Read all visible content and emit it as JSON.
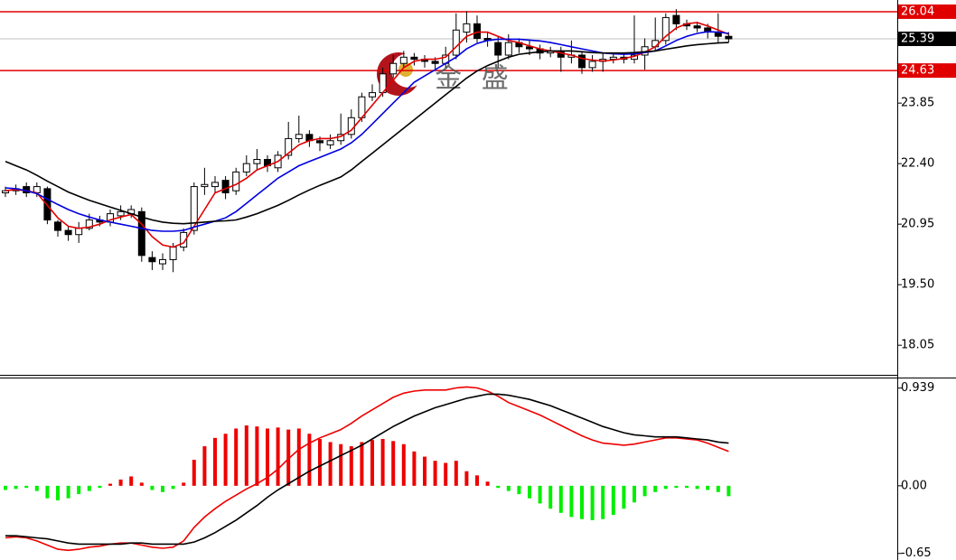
{
  "chart_data": [
    {
      "type": "candlestick",
      "watermark": "金 盛",
      "open": [
        21.7,
        21.75,
        21.85,
        21.7,
        21.8,
        21.0,
        20.8,
        20.7,
        20.85,
        21.05,
        21.0,
        21.15,
        21.2,
        21.25,
        20.15,
        20.0,
        20.1,
        20.4,
        20.8,
        21.85,
        21.85,
        22.0,
        21.75,
        22.2,
        22.4,
        22.5,
        22.3,
        22.6,
        23.0,
        23.1,
        22.95,
        22.85,
        22.95,
        23.1,
        23.5,
        24.0,
        24.1,
        24.55,
        24.8,
        24.95,
        24.9,
        24.85,
        24.8,
        25.0,
        25.55,
        25.75,
        25.4,
        25.3,
        25.0,
        25.3,
        25.2,
        25.15,
        25.05,
        25.1,
        24.95,
        25.0,
        24.7,
        24.85,
        24.9,
        24.95,
        24.9,
        25.0,
        25.2,
        25.35,
        25.95,
        25.75,
        25.7,
        25.65,
        25.55,
        25.45
      ],
      "high": [
        21.85,
        21.9,
        21.95,
        21.95,
        21.85,
        21.05,
        20.9,
        21.0,
        21.2,
        21.15,
        21.3,
        21.4,
        21.4,
        21.35,
        20.3,
        20.25,
        20.5,
        20.85,
        21.95,
        22.3,
        22.1,
        22.1,
        22.3,
        22.6,
        22.75,
        22.6,
        22.7,
        23.4,
        23.55,
        23.2,
        23.05,
        23.1,
        23.6,
        23.7,
        24.1,
        24.3,
        24.7,
        25.0,
        25.1,
        25.05,
        25.0,
        24.95,
        25.2,
        26.0,
        26.05,
        25.95,
        25.55,
        25.45,
        25.5,
        25.4,
        25.35,
        25.25,
        25.2,
        25.2,
        25.35,
        25.1,
        25.0,
        25.05,
        25.05,
        25.05,
        25.95,
        25.4,
        25.9,
        26.0,
        26.1,
        25.85,
        25.8,
        25.75,
        26.0,
        25.55
      ],
      "low": [
        21.6,
        21.65,
        21.6,
        21.6,
        20.95,
        20.65,
        20.55,
        20.5,
        20.8,
        20.9,
        20.9,
        21.05,
        21.1,
        20.05,
        19.85,
        19.85,
        19.8,
        20.3,
        20.7,
        21.65,
        21.7,
        21.55,
        21.65,
        22.1,
        22.25,
        22.2,
        22.2,
        22.5,
        22.9,
        22.8,
        22.7,
        22.75,
        22.85,
        23.0,
        23.4,
        23.9,
        24.0,
        24.45,
        24.7,
        24.75,
        24.7,
        24.65,
        24.7,
        24.9,
        25.3,
        25.3,
        25.2,
        24.7,
        24.9,
        25.05,
        25.0,
        24.9,
        24.95,
        24.6,
        24.8,
        24.55,
        24.6,
        24.6,
        24.8,
        24.8,
        24.8,
        24.65,
        25.1,
        25.25,
        25.6,
        25.6,
        25.55,
        25.4,
        25.3,
        25.3
      ],
      "close": [
        21.75,
        21.8,
        21.7,
        21.85,
        21.05,
        20.8,
        20.7,
        20.85,
        21.05,
        21.0,
        21.2,
        21.25,
        21.3,
        20.2,
        20.05,
        20.1,
        20.4,
        20.75,
        21.85,
        21.9,
        21.95,
        21.7,
        22.2,
        22.4,
        22.5,
        22.35,
        22.6,
        23.0,
        23.1,
        22.95,
        22.9,
        22.95,
        23.1,
        23.5,
        24.0,
        24.1,
        24.55,
        24.8,
        24.95,
        24.9,
        24.85,
        24.8,
        25.0,
        25.6,
        25.75,
        25.4,
        25.35,
        25.0,
        25.3,
        25.2,
        25.15,
        25.05,
        25.1,
        24.95,
        25.0,
        24.7,
        24.85,
        24.9,
        24.95,
        24.9,
        25.0,
        25.2,
        25.35,
        25.9,
        25.75,
        25.7,
        25.65,
        25.55,
        25.45,
        25.39
      ],
      "up_color": "#ffffff",
      "down_color": "#000000",
      "series": [
        {
          "color": "#e00000",
          "values": [
            21.75,
            21.78,
            21.75,
            21.7,
            21.4,
            21.1,
            20.9,
            20.85,
            20.88,
            20.95,
            21.05,
            21.12,
            21.18,
            20.95,
            20.65,
            20.45,
            20.4,
            20.5,
            20.9,
            21.3,
            21.7,
            21.8,
            21.9,
            22.05,
            22.25,
            22.35,
            22.45,
            22.65,
            22.85,
            22.95,
            23.0,
            23.0,
            23.05,
            23.2,
            23.5,
            23.8,
            24.1,
            24.4,
            24.7,
            24.85,
            24.9,
            24.9,
            24.95,
            25.2,
            25.45,
            25.55,
            25.55,
            25.45,
            25.35,
            25.3,
            25.22,
            25.15,
            25.1,
            25.05,
            25.0,
            24.92,
            24.88,
            24.86,
            24.88,
            24.92,
            24.97,
            25.07,
            25.2,
            25.45,
            25.65,
            25.75,
            25.78,
            25.7,
            25.6,
            25.5
          ]
        },
        {
          "color": "#0000e0",
          "values": [
            21.82,
            21.8,
            21.75,
            21.68,
            21.55,
            21.42,
            21.3,
            21.2,
            21.12,
            21.05,
            21.0,
            20.95,
            20.9,
            20.85,
            20.8,
            20.78,
            20.78,
            20.8,
            20.88,
            20.95,
            21.02,
            21.1,
            21.25,
            21.45,
            21.65,
            21.85,
            22.05,
            22.2,
            22.35,
            22.45,
            22.55,
            22.65,
            22.75,
            22.9,
            23.1,
            23.35,
            23.6,
            23.85,
            24.1,
            24.35,
            24.5,
            24.65,
            24.8,
            24.95,
            25.15,
            25.28,
            25.35,
            25.38,
            25.38,
            25.38,
            25.36,
            25.34,
            25.3,
            25.25,
            25.2,
            25.15,
            25.1,
            25.05,
            25.03,
            25.02,
            25.03,
            25.06,
            25.1,
            25.22,
            25.35,
            25.45,
            25.52,
            25.56,
            25.55,
            25.52
          ]
        },
        {
          "color": "#000000",
          "values": [
            22.45,
            22.35,
            22.25,
            22.12,
            21.98,
            21.85,
            21.72,
            21.62,
            21.52,
            21.44,
            21.36,
            21.28,
            21.2,
            21.12,
            21.05,
            21.0,
            20.97,
            20.96,
            20.98,
            21.0,
            21.02,
            21.03,
            21.05,
            21.12,
            21.2,
            21.3,
            21.4,
            21.52,
            21.65,
            21.77,
            21.88,
            21.98,
            22.08,
            22.25,
            22.45,
            22.65,
            22.85,
            23.05,
            23.25,
            23.45,
            23.65,
            23.85,
            24.05,
            24.25,
            24.45,
            24.62,
            24.75,
            24.85,
            24.95,
            25.02,
            25.05,
            25.08,
            25.1,
            25.1,
            25.1,
            25.08,
            25.06,
            25.05,
            25.05,
            25.05,
            25.06,
            25.08,
            25.1,
            25.14,
            25.18,
            25.22,
            25.25,
            25.27,
            25.29,
            25.3
          ]
        }
      ],
      "levels": [
        {
          "value": 26.04,
          "color": "#e00000",
          "label_bg": "#e00000"
        },
        {
          "value": 25.39,
          "color": "#c0c0c0",
          "label_bg": "#000000"
        },
        {
          "value": 24.63,
          "color": "#e00000",
          "label_bg": "#e00000"
        }
      ],
      "ylim": [
        17.34,
        26.32
      ],
      "yticks": [
        18.05,
        {
          "value": 19.5,
          "label": "19.50"
        },
        20.95,
        {
          "value": 22.4,
          "label": "22.40"
        },
        23.85
      ]
    },
    {
      "type": "macd",
      "histogram": [
        -0.04,
        -0.03,
        -0.02,
        -0.05,
        -0.12,
        -0.14,
        -0.12,
        -0.08,
        -0.05,
        -0.02,
        0.02,
        0.06,
        0.09,
        0.03,
        -0.04,
        -0.06,
        -0.03,
        0.03,
        0.25,
        0.38,
        0.46,
        0.5,
        0.55,
        0.58,
        0.57,
        0.55,
        0.56,
        0.54,
        0.55,
        0.5,
        0.45,
        0.42,
        0.4,
        0.38,
        0.42,
        0.44,
        0.45,
        0.43,
        0.4,
        0.33,
        0.28,
        0.24,
        0.22,
        0.24,
        0.14,
        0.1,
        0.04,
        -0.02,
        -0.05,
        -0.08,
        -0.12,
        -0.17,
        -0.22,
        -0.26,
        -0.3,
        -0.32,
        -0.33,
        -0.32,
        -0.28,
        -0.22,
        -0.16,
        -0.1,
        -0.06,
        -0.03,
        -0.02,
        -0.02,
        -0.03,
        -0.04,
        -0.06,
        -0.1
      ],
      "up_color": "#ee0000",
      "down_color": "#00ee00",
      "series": [
        {
          "color": "#ee0000",
          "values": [
            -0.5,
            -0.49,
            -0.5,
            -0.53,
            -0.57,
            -0.61,
            -0.62,
            -0.61,
            -0.59,
            -0.58,
            -0.56,
            -0.55,
            -0.55,
            -0.57,
            -0.59,
            -0.6,
            -0.59,
            -0.53,
            -0.4,
            -0.3,
            -0.22,
            -0.15,
            -0.09,
            -0.03,
            0.02,
            0.08,
            0.16,
            0.26,
            0.35,
            0.41,
            0.46,
            0.5,
            0.54,
            0.6,
            0.67,
            0.73,
            0.79,
            0.85,
            0.89,
            0.91,
            0.92,
            0.92,
            0.92,
            0.94,
            0.95,
            0.94,
            0.91,
            0.86,
            0.8,
            0.76,
            0.72,
            0.68,
            0.63,
            0.58,
            0.53,
            0.48,
            0.44,
            0.41,
            0.4,
            0.39,
            0.4,
            0.42,
            0.44,
            0.46,
            0.46,
            0.45,
            0.44,
            0.41,
            0.37,
            0.33
          ]
        },
        {
          "color": "#000000",
          "values": [
            -0.48,
            -0.48,
            -0.49,
            -0.5,
            -0.51,
            -0.53,
            -0.55,
            -0.56,
            -0.56,
            -0.56,
            -0.56,
            -0.56,
            -0.55,
            -0.55,
            -0.56,
            -0.56,
            -0.56,
            -0.56,
            -0.54,
            -0.5,
            -0.45,
            -0.39,
            -0.33,
            -0.26,
            -0.19,
            -0.11,
            -0.04,
            0.02,
            0.08,
            0.14,
            0.19,
            0.24,
            0.29,
            0.34,
            0.39,
            0.45,
            0.51,
            0.57,
            0.62,
            0.67,
            0.71,
            0.75,
            0.78,
            0.81,
            0.84,
            0.86,
            0.88,
            0.88,
            0.87,
            0.85,
            0.83,
            0.8,
            0.77,
            0.73,
            0.69,
            0.65,
            0.61,
            0.57,
            0.54,
            0.51,
            0.49,
            0.48,
            0.47,
            0.47,
            0.47,
            0.46,
            0.45,
            0.44,
            0.42,
            0.41
          ]
        }
      ],
      "ylim": [
        -0.713,
        1.04
      ],
      "yticks": [
        -0.65,
        {
          "value": 0,
          "label": "0.00"
        },
        0.939
      ]
    }
  ]
}
